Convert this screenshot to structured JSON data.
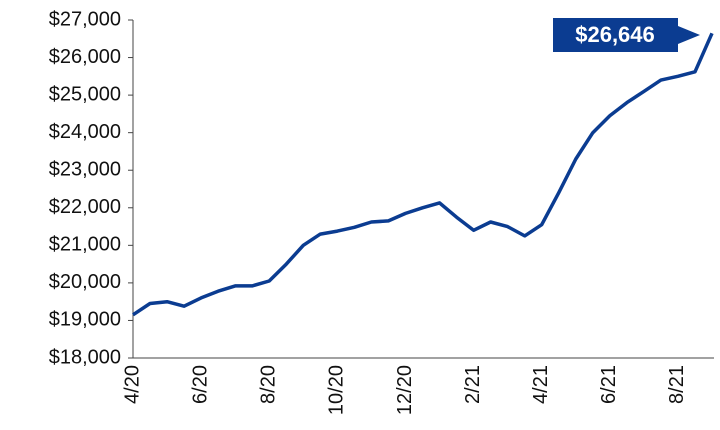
{
  "chart_data": {
    "type": "line",
    "annotation": "$26,646",
    "categories": [
      "4/20",
      null,
      null,
      null,
      "6/20",
      null,
      null,
      null,
      "8/20",
      null,
      null,
      null,
      "10/20",
      null,
      null,
      null,
      "12/20",
      null,
      null,
      null,
      "2/21",
      null,
      null,
      null,
      "4/21",
      null,
      null,
      null,
      "6/21",
      null,
      null,
      null,
      "8/21",
      null,
      null
    ],
    "series": [
      {
        "name": null,
        "color": "#0b3c91",
        "values": [
          19150,
          19450,
          19500,
          19380,
          19600,
          19780,
          19920,
          19920,
          20050,
          20500,
          21000,
          21300,
          21380,
          21480,
          21620,
          21650,
          21850,
          22000,
          22130,
          21750,
          21400,
          21620,
          21500,
          21250,
          21550,
          22400,
          23300,
          24000,
          24450,
          24800,
          25100,
          25400,
          25500,
          25620,
          26646
        ]
      }
    ],
    "ylim": [
      18000,
      27000
    ],
    "yticks": [
      {
        "value": 18000,
        "label": "$18,000"
      },
      {
        "value": 19000,
        "label": "$19,000"
      },
      {
        "value": 20000,
        "label": "$20,000"
      },
      {
        "value": 21000,
        "label": "$21,000"
      },
      {
        "value": 22000,
        "label": "$22,000"
      },
      {
        "value": 23000,
        "label": "$23,000"
      },
      {
        "value": 24000,
        "label": "$24,000"
      },
      {
        "value": 25000,
        "label": "$25,000"
      },
      {
        "value": 26000,
        "label": "$26,000"
      },
      {
        "value": 27000,
        "label": "$27,000"
      }
    ]
  }
}
